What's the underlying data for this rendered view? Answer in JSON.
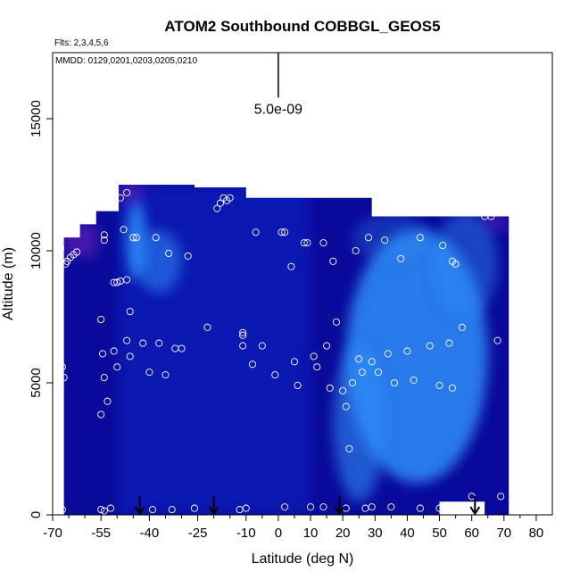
{
  "chart_data": {
    "type": "heatmap",
    "title": "ATOM2 Southbound COBBGL_GEOS5",
    "flights_note": "Flts: 2,3,4,5,6",
    "dates_note": "MMDD: 0129,0201,0203,0205,0210",
    "xlabel": "Latitude (deg N)",
    "ylabel": "Altitude (m)",
    "xlim": [
      -70,
      85
    ],
    "ylim": [
      0,
      17500
    ],
    "x_ticks": [
      -70,
      -55,
      -40,
      -25,
      -10,
      0,
      10,
      20,
      30,
      40,
      50,
      60,
      70,
      80
    ],
    "x_minor_ticks": [
      -65,
      -60,
      -50,
      -45,
      -35,
      -30,
      -20,
      -15,
      -5,
      5,
      15,
      25,
      35,
      45,
      55,
      65,
      75
    ],
    "y_ticks": [
      0,
      5000,
      10000,
      15000
    ],
    "scale_bar": {
      "label": "5.0e-09",
      "x": 0,
      "y_top": 17500,
      "y_bottom": 15800
    },
    "colors": {
      "dark": "#0a0a9a",
      "mid": "#1030dd",
      "bright": "#2d8df8",
      "purple": "#5a1bb8",
      "marker": "#ffffff",
      "arrow": "#000000"
    },
    "column_extents": [
      {
        "x0": -66.5,
        "x1": -61.5,
        "top": 10500
      },
      {
        "x0": -61.5,
        "x1": -56.5,
        "top": 11000
      },
      {
        "x0": -56.5,
        "x1": -49.5,
        "top": 11500
      },
      {
        "x0": -49.5,
        "x1": -26.0,
        "top": 12500
      },
      {
        "x0": -26.0,
        "x1": -10.0,
        "top": 12400
      },
      {
        "x0": -10.0,
        "x1": 29.0,
        "top": 12000
      },
      {
        "x0": 29.0,
        "x1": 64.0,
        "top": 11300
      },
      {
        "x0": 64.0,
        "x1": 71.5,
        "top": 11300
      }
    ],
    "bright_blobs": [
      {
        "x": -44,
        "y": 10400,
        "rx": 3,
        "ry": 1500,
        "intensity": 0.9
      },
      {
        "x": -37,
        "y": 9600,
        "rx": 7,
        "ry": 1200,
        "intensity": 0.55
      },
      {
        "x": 43,
        "y": 6000,
        "rx": 22,
        "ry": 4800,
        "intensity": 0.85
      },
      {
        "x": 25,
        "y": 3500,
        "rx": 8,
        "ry": 3000,
        "intensity": 0.6
      },
      {
        "x": 58,
        "y": 9500,
        "rx": 10,
        "ry": 2000,
        "intensity": 0.45
      },
      {
        "x": 35,
        "y": 10500,
        "rx": 12,
        "ry": 900,
        "intensity": 0.3
      }
    ],
    "purple_patches": [
      {
        "x0": -66.5,
        "x1": -56,
        "y0": 9800,
        "y1": 11000
      },
      {
        "x0": 64,
        "x1": 71.5,
        "y0": 10800,
        "y1": 11300
      },
      {
        "x0": -49,
        "x1": -42,
        "y0": 11800,
        "y1": 12500
      }
    ],
    "blank_boxes": [
      {
        "x0": 50,
        "x1": 64,
        "y0": 0,
        "y1": 500
      }
    ],
    "sample_points": [
      [
        -67.5,
        10100
      ],
      [
        -67,
        5600
      ],
      [
        -66.5,
        5200
      ],
      [
        -67,
        200
      ],
      [
        -66,
        9500
      ],
      [
        -65.5,
        9600
      ],
      [
        -64.5,
        9750
      ],
      [
        -63.5,
        9850
      ],
      [
        -62.5,
        9950
      ],
      [
        -55,
        7400
      ],
      [
        -54,
        10400
      ],
      [
        -54,
        10600
      ],
      [
        -54.5,
        6100
      ],
      [
        -54,
        5200
      ],
      [
        -53,
        4300
      ],
      [
        -55,
        3800
      ],
      [
        -55,
        200
      ],
      [
        -54,
        150
      ],
      [
        -52,
        250
      ],
      [
        -51,
        11700
      ],
      [
        -51,
        8800
      ],
      [
        -50,
        8800
      ],
      [
        -49,
        8850
      ],
      [
        -47,
        8900
      ],
      [
        -51,
        6200
      ],
      [
        -50,
        5600
      ],
      [
        -49,
        12000
      ],
      [
        -47,
        12200
      ],
      [
        -48,
        10800
      ],
      [
        -46,
        7700
      ],
      [
        -46,
        6000
      ],
      [
        -47,
        6600
      ],
      [
        -45,
        10500
      ],
      [
        -44,
        10500
      ],
      [
        -42,
        6500
      ],
      [
        -40,
        5400
      ],
      [
        -38,
        10500
      ],
      [
        -37,
        6500
      ],
      [
        -35,
        5300
      ],
      [
        -34,
        9900
      ],
      [
        -32,
        6300
      ],
      [
        -30,
        6300
      ],
      [
        -28,
        9800
      ],
      [
        -39,
        200
      ],
      [
        -33,
        200
      ],
      [
        -26,
        250
      ],
      [
        -22,
        7100
      ],
      [
        -19,
        11600
      ],
      [
        -18,
        11800
      ],
      [
        -17,
        12000
      ],
      [
        -15,
        12000
      ],
      [
        -16,
        11900
      ],
      [
        -11,
        6400
      ],
      [
        -11,
        6800
      ],
      [
        -11,
        6900
      ],
      [
        -8,
        5700
      ],
      [
        -7,
        10700
      ],
      [
        -5,
        6400
      ],
      [
        -1,
        5300
      ],
      [
        1,
        10700
      ],
      [
        2,
        10700
      ],
      [
        4,
        9400
      ],
      [
        5,
        5800
      ],
      [
        6,
        4900
      ],
      [
        8,
        10300
      ],
      [
        9,
        10300
      ],
      [
        11,
        6000
      ],
      [
        12,
        5600
      ],
      [
        14,
        10300
      ],
      [
        15,
        6400
      ],
      [
        16,
        4800
      ],
      [
        17,
        9600
      ],
      [
        18,
        7300
      ],
      [
        20,
        4700
      ],
      [
        21,
        4100
      ],
      [
        22,
        2500
      ],
      [
        23,
        5000
      ],
      [
        24,
        10000
      ],
      [
        25,
        5900
      ],
      [
        26,
        5400
      ],
      [
        28,
        10500
      ],
      [
        29,
        5800
      ],
      [
        31,
        5400
      ],
      [
        33,
        10400
      ],
      [
        34,
        6100
      ],
      [
        36,
        5000
      ],
      [
        38,
        9700
      ],
      [
        40,
        6200
      ],
      [
        42,
        5100
      ],
      [
        44,
        10500
      ],
      [
        47,
        6400
      ],
      [
        50,
        4900
      ],
      [
        51,
        10200
      ],
      [
        53,
        6500
      ],
      [
        54,
        4800
      ],
      [
        54,
        9600
      ],
      [
        55,
        9500
      ],
      [
        57,
        7100
      ],
      [
        60,
        700
      ],
      [
        64,
        11300
      ],
      [
        66,
        11300
      ],
      [
        68,
        6600
      ],
      [
        69,
        700
      ],
      [
        -12,
        200
      ],
      [
        -10,
        250
      ],
      [
        2,
        300
      ],
      [
        10,
        300
      ],
      [
        14,
        300
      ],
      [
        21,
        250
      ],
      [
        27,
        250
      ],
      [
        29,
        300
      ],
      [
        35,
        300
      ],
      [
        44,
        250
      ],
      [
        50,
        250
      ]
    ],
    "arrows": [
      {
        "x": -43,
        "label": ""
      },
      {
        "x": -20,
        "label": ""
      },
      {
        "x": 19,
        "label": ""
      },
      {
        "x": 61,
        "label": ""
      }
    ]
  }
}
